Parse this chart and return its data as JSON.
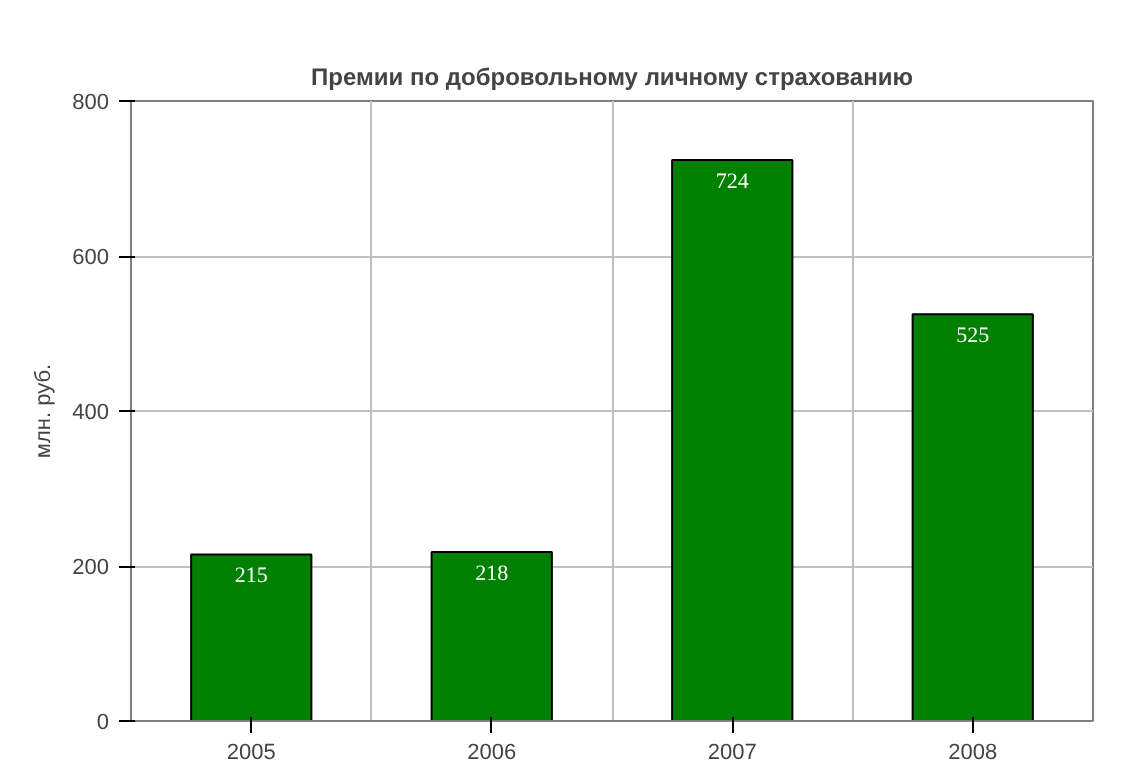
{
  "chart_data": {
    "type": "bar",
    "title": "Премии по добровольному личному страхованию",
    "ylabel": "млн. руб.",
    "categories": [
      "2005",
      "2006",
      "2007",
      "2008"
    ],
    "values": [
      215,
      218,
      724,
      525
    ],
    "color": "#008000",
    "ylim": [
      0,
      800
    ],
    "yticks": [
      0,
      200,
      400,
      600,
      800
    ],
    "grid": true,
    "data_labels": true
  }
}
